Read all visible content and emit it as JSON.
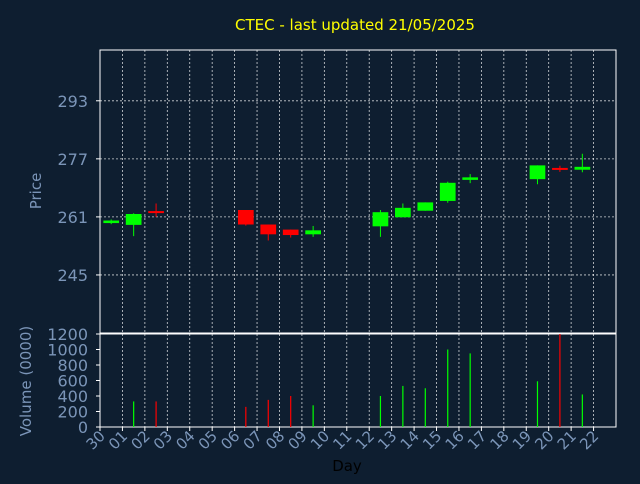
{
  "colors": {
    "background": "#0e1e30",
    "axis": "#ffffff",
    "grid": "#ffffff",
    "tick_label": "#7b95b8",
    "title": "#ffff00",
    "up": "#00ff00",
    "down": "#ff0000"
  },
  "chart_data": [
    {
      "type": "candlestick",
      "title": "CTEC - last updated 21/05/2025",
      "xlabel": "Day",
      "ylabel": "Price",
      "categories": [
        "30",
        "01",
        "02",
        "03",
        "04",
        "05",
        "06",
        "07",
        "08",
        "09",
        "10",
        "11",
        "12",
        "13",
        "14",
        "15",
        "16",
        "17",
        "18",
        "19",
        "20",
        "21",
        "22"
      ],
      "ylim": [
        229,
        307
      ],
      "yticks": [
        245,
        261,
        277,
        293
      ],
      "grid": true,
      "candles": [
        {
          "day": "30",
          "open": 259.3,
          "high": 260.3,
          "low": 259.0,
          "close": 260.0
        },
        {
          "day": "01",
          "open": 258.8,
          "high": 262.0,
          "low": 255.7,
          "close": 261.8
        },
        {
          "day": "02",
          "open": 262.6,
          "high": 264.7,
          "low": 261.0,
          "close": 262.4
        },
        {
          "day": "06",
          "open": 262.9,
          "high": 262.9,
          "low": 258.6,
          "close": 258.9
        },
        {
          "day": "07",
          "open": 258.9,
          "high": 258.9,
          "low": 254.5,
          "close": 256.2
        },
        {
          "day": "08",
          "open": 257.5,
          "high": 257.5,
          "low": 255.3,
          "close": 256.0
        },
        {
          "day": "09",
          "open": 256.2,
          "high": 258.5,
          "low": 255.5,
          "close": 257.3
        },
        {
          "day": "12",
          "open": 258.4,
          "high": 262.9,
          "low": 255.5,
          "close": 262.3
        },
        {
          "day": "13",
          "open": 260.9,
          "high": 264.7,
          "low": 260.9,
          "close": 263.5
        },
        {
          "day": "14",
          "open": 262.7,
          "high": 265.0,
          "low": 262.7,
          "close": 265.0
        },
        {
          "day": "15",
          "open": 265.4,
          "high": 270.7,
          "low": 264.9,
          "close": 270.4
        },
        {
          "day": "16",
          "open": 271.2,
          "high": 272.8,
          "low": 270.3,
          "close": 271.9
        },
        {
          "day": "19",
          "open": 271.4,
          "high": 275.2,
          "low": 270.0,
          "close": 275.2
        },
        {
          "day": "20",
          "open": 274.5,
          "high": 275.1,
          "low": 273.4,
          "close": 274.2
        },
        {
          "day": "21",
          "open": 274.0,
          "high": 278.4,
          "low": 273.3,
          "close": 274.8
        }
      ]
    },
    {
      "type": "bar",
      "xlabel": "Day",
      "ylabel": "Volume (0000)",
      "categories": [
        "30",
        "01",
        "02",
        "03",
        "04",
        "05",
        "06",
        "07",
        "08",
        "09",
        "10",
        "11",
        "12",
        "13",
        "14",
        "15",
        "16",
        "17",
        "18",
        "19",
        "20",
        "21",
        "22"
      ],
      "ylim": [
        0,
        1200
      ],
      "yticks": [
        0,
        200,
        400,
        600,
        800,
        1000,
        1200
      ],
      "bars": [
        {
          "day": "01",
          "value": 330,
          "direction": "up"
        },
        {
          "day": "02",
          "value": 330,
          "direction": "down"
        },
        {
          "day": "06",
          "value": 260,
          "direction": "down"
        },
        {
          "day": "07",
          "value": 350,
          "direction": "down"
        },
        {
          "day": "08",
          "value": 400,
          "direction": "down"
        },
        {
          "day": "09",
          "value": 280,
          "direction": "up"
        },
        {
          "day": "12",
          "value": 400,
          "direction": "up"
        },
        {
          "day": "13",
          "value": 530,
          "direction": "up"
        },
        {
          "day": "14",
          "value": 500,
          "direction": "up"
        },
        {
          "day": "15",
          "value": 1000,
          "direction": "up"
        },
        {
          "day": "16",
          "value": 950,
          "direction": "up"
        },
        {
          "day": "19",
          "value": 590,
          "direction": "up"
        },
        {
          "day": "20",
          "value": 1200,
          "direction": "down"
        },
        {
          "day": "21",
          "value": 420,
          "direction": "up"
        }
      ]
    }
  ]
}
